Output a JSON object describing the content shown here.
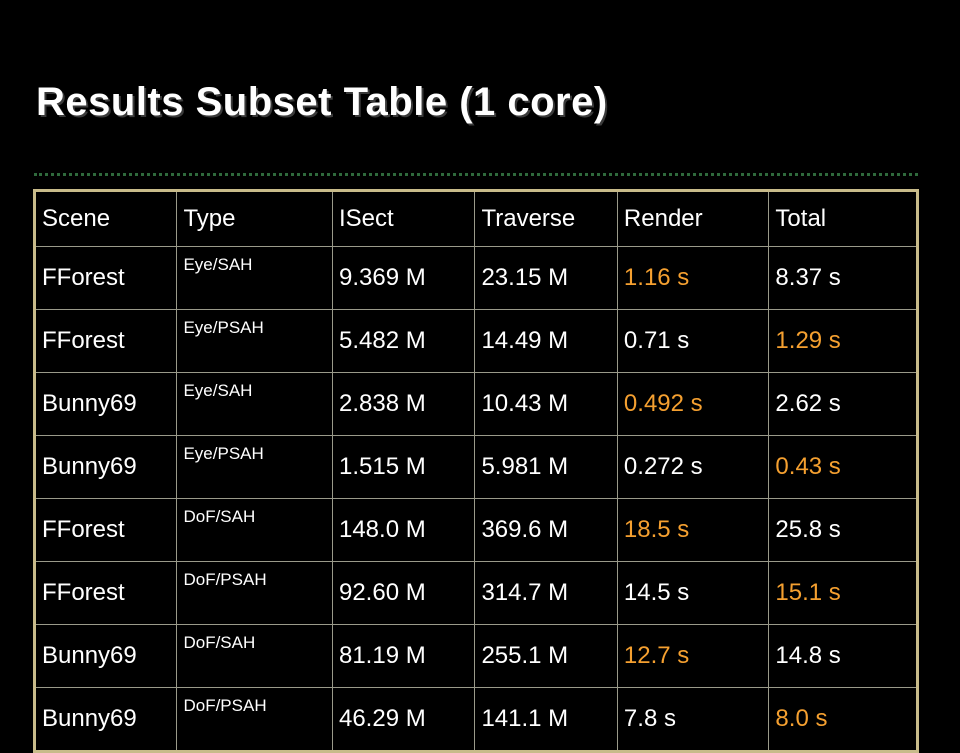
{
  "title": "Results Subset Table (1 core)",
  "table": {
    "headers": [
      "Scene",
      "Type",
      "ISect",
      "Traverse",
      "Render",
      "Total"
    ],
    "rows": [
      {
        "scene": "FForest",
        "type": "Eye/SAH",
        "isect": "9.369 M",
        "traverse": "23.15 M",
        "render": "1.16 s",
        "total": "8.37 s",
        "highlight": "render"
      },
      {
        "scene": "FForest",
        "type": "Eye/PSAH",
        "isect": "5.482 M",
        "traverse": "14.49 M",
        "render": "0.71 s",
        "total": "1.29 s",
        "highlight": "total"
      },
      {
        "scene": "Bunny69",
        "type": "Eye/SAH",
        "isect": "2.838 M",
        "traverse": "10.43 M",
        "render": "0.492 s",
        "total": "2.62 s",
        "highlight": "render"
      },
      {
        "scene": "Bunny69",
        "type": "Eye/PSAH",
        "isect": "1.515 M",
        "traverse": "5.981 M",
        "render": "0.272 s",
        "total": "0.43 s",
        "highlight": "total"
      },
      {
        "scene": "FForest",
        "type": "DoF/SAH",
        "isect": "148.0 M",
        "traverse": "369.6 M",
        "render": "18.5 s",
        "total": "25.8 s",
        "highlight": "render"
      },
      {
        "scene": "FForest",
        "type": "DoF/PSAH",
        "isect": "92.60 M",
        "traverse": "314.7 M",
        "render": "14.5 s",
        "total": "15.1 s",
        "highlight": "total"
      },
      {
        "scene": "Bunny69",
        "type": "DoF/SAH",
        "isect": "81.19 M",
        "traverse": "255.1 M",
        "render": "12.7 s",
        "total": "14.8 s",
        "highlight": "render"
      },
      {
        "scene": "Bunny69",
        "type": "DoF/PSAH",
        "isect": "46.29 M",
        "traverse": "141.1 M",
        "render": "7.8 s",
        "total": "8.0 s",
        "highlight": "total"
      }
    ]
  },
  "colors": {
    "background": "#000000",
    "text": "#ffffff",
    "highlight": "#f5a030",
    "table_border": "#c8bb8a",
    "divider": "#2f6a3c"
  }
}
